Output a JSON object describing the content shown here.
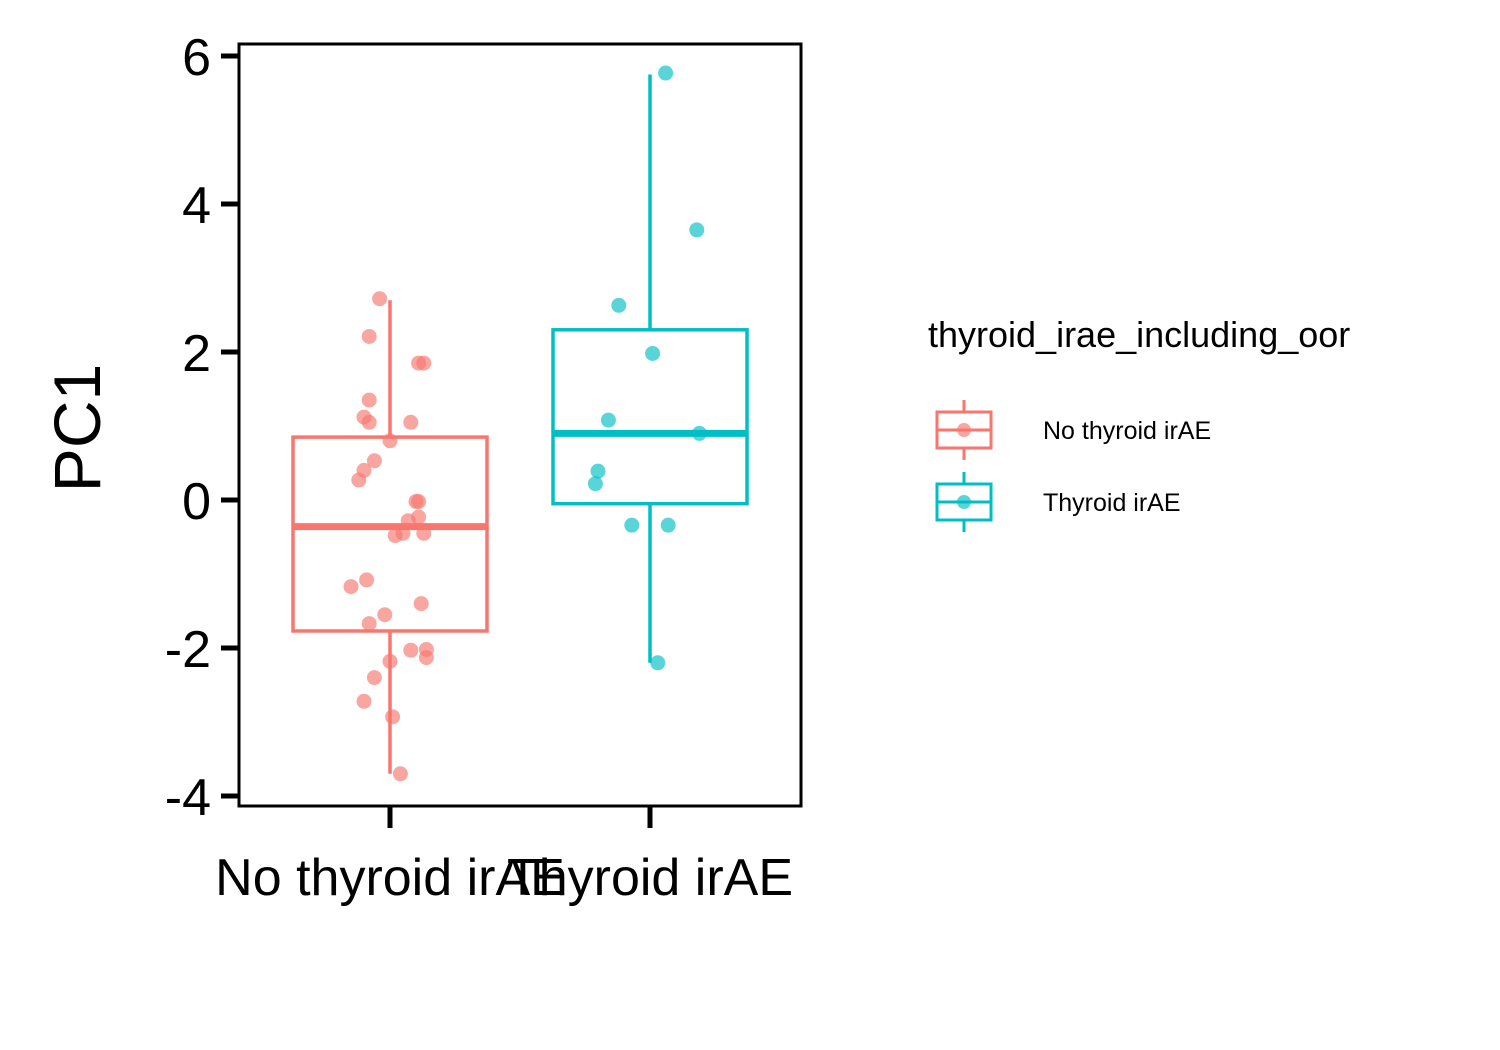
{
  "chart_data": {
    "type": "box",
    "xlabel": "",
    "ylabel": "PC1",
    "ylim": [
      -4.1,
      6.2
    ],
    "yticks": [
      -4,
      -2,
      0,
      2,
      4,
      6
    ],
    "categories": [
      "No thyroid irAE",
      "Thyroid irAE"
    ],
    "legend": {
      "title": "thyroid_irae_including_oor",
      "position": "right",
      "entries": [
        {
          "label": "No thyroid irAE",
          "color": "#F8766D"
        },
        {
          "label": "Thyroid irAE",
          "color": "#00BFC4"
        }
      ]
    },
    "series": [
      {
        "name": "No thyroid irAE",
        "color": "#F8766D",
        "box": {
          "min": -3.7,
          "q1": -1.77,
          "median": -0.36,
          "q3": 0.85,
          "max": 2.7
        },
        "points": [
          {
            "x": 0.8,
            "y": 2.72
          },
          {
            "x": 0.6,
            "y": 2.21
          },
          {
            "x": 1.65,
            "y": 1.85
          },
          {
            "x": 1.55,
            "y": 1.85
          },
          {
            "x": 0.6,
            "y": 1.35
          },
          {
            "x": 0.5,
            "y": 1.12
          },
          {
            "x": 1.4,
            "y": 1.05
          },
          {
            "x": 0.6,
            "y": 1.05
          },
          {
            "x": 1.0,
            "y": 0.8
          },
          {
            "x": 0.7,
            "y": 0.53
          },
          {
            "x": 0.5,
            "y": 0.4
          },
          {
            "x": 0.4,
            "y": 0.27
          },
          {
            "x": 1.55,
            "y": -0.02
          },
          {
            "x": 1.5,
            "y": -0.02
          },
          {
            "x": 1.55,
            "y": -0.23
          },
          {
            "x": 1.35,
            "y": -0.28
          },
          {
            "x": 1.65,
            "y": -0.45
          },
          {
            "x": 1.25,
            "y": -0.45
          },
          {
            "x": 1.1,
            "y": -0.48
          },
          {
            "x": 0.55,
            "y": -1.08
          },
          {
            "x": 0.25,
            "y": -1.17
          },
          {
            "x": 1.6,
            "y": -1.4
          },
          {
            "x": 0.9,
            "y": -1.55
          },
          {
            "x": 0.6,
            "y": -1.67
          },
          {
            "x": 1.7,
            "y": -2.02
          },
          {
            "x": 1.4,
            "y": -2.03
          },
          {
            "x": 1.7,
            "y": -2.13
          },
          {
            "x": 1.0,
            "y": -2.18
          },
          {
            "x": 0.7,
            "y": -2.4
          },
          {
            "x": 0.5,
            "y": -2.72
          },
          {
            "x": 1.05,
            "y": -2.93
          },
          {
            "x": 1.2,
            "y": -3.7
          }
        ]
      },
      {
        "name": "Thyroid irAE",
        "color": "#00BFC4",
        "box": {
          "min": -2.2,
          "q1": -0.05,
          "median": 0.9,
          "q3": 2.3,
          "max": 5.75
        },
        "points": [
          {
            "x": 2.06,
            "y": 5.77
          },
          {
            "x": 2.18,
            "y": 3.65
          },
          {
            "x": 1.88,
            "y": 2.63
          },
          {
            "x": 2.01,
            "y": 1.98
          },
          {
            "x": 1.84,
            "y": 1.08
          },
          {
            "x": 2.19,
            "y": 0.9
          },
          {
            "x": 1.8,
            "y": 0.39
          },
          {
            "x": 1.79,
            "y": 0.22
          },
          {
            "x": 1.93,
            "y": -0.34
          },
          {
            "x": 2.07,
            "y": -0.34
          },
          {
            "x": 2.03,
            "y": -2.2
          }
        ]
      }
    ]
  }
}
